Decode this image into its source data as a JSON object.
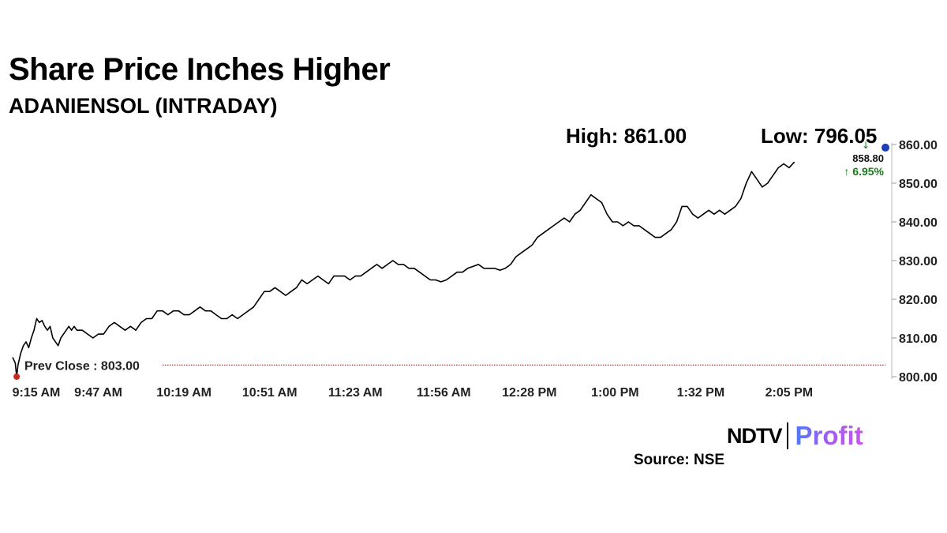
{
  "header": {
    "title": "Share Price Inches Higher",
    "subtitle": "ADANIENSOL (INTRADAY)"
  },
  "stats": {
    "high": "High: 861.00",
    "low": "Low: 796.05"
  },
  "chart_data": {
    "type": "line",
    "ylim": [
      800,
      860
    ],
    "y_ticks": [
      "800.00",
      "810.00",
      "820.00",
      "830.00",
      "840.00",
      "850.00",
      "860.00"
    ],
    "x_ticks": [
      "9:15 AM",
      "9:47 AM",
      "10:19 AM",
      "10:51 AM",
      "11:23 AM",
      "11:56 AM",
      "12:28 PM",
      "1:00 PM",
      "1:32 PM",
      "2:05 PM"
    ],
    "x_tick_minutes": [
      0,
      32,
      64,
      96,
      128,
      161,
      193,
      225,
      257,
      290
    ],
    "x_range_minutes": [
      0,
      326
    ],
    "reference_line": {
      "label": "Prev Close : 803.00",
      "value": 803.0,
      "color": "#8b1a1a"
    },
    "last_price": "858.80",
    "change": "↑ 6.95%",
    "change_color": "#1a7a1a",
    "line_color": "#000000",
    "series": [
      {
        "values": [
          [
            0,
            805
          ],
          [
            1,
            803.5
          ],
          [
            1.5,
            800
          ],
          [
            2,
            803
          ],
          [
            3,
            806
          ],
          [
            4,
            808
          ],
          [
            5,
            809
          ],
          [
            6,
            807.5
          ],
          [
            7,
            810
          ],
          [
            8,
            812
          ],
          [
            9,
            815
          ],
          [
            10,
            814
          ],
          [
            11,
            814.5
          ],
          [
            12,
            813
          ],
          [
            13,
            812
          ],
          [
            14,
            813
          ],
          [
            15,
            810
          ],
          [
            16,
            809
          ],
          [
            17,
            808
          ],
          [
            18,
            810
          ],
          [
            19,
            811
          ],
          [
            20,
            812
          ],
          [
            21,
            813
          ],
          [
            22,
            812
          ],
          [
            23,
            813
          ],
          [
            24,
            812
          ],
          [
            26,
            812
          ],
          [
            28,
            811
          ],
          [
            30,
            810
          ],
          [
            32,
            811
          ],
          [
            34,
            811
          ],
          [
            36,
            813
          ],
          [
            38,
            814
          ],
          [
            40,
            813
          ],
          [
            42,
            812
          ],
          [
            44,
            813
          ],
          [
            46,
            812
          ],
          [
            48,
            814
          ],
          [
            50,
            815
          ],
          [
            52,
            815
          ],
          [
            54,
            817
          ],
          [
            56,
            817
          ],
          [
            58,
            816
          ],
          [
            60,
            817
          ],
          [
            62,
            817
          ],
          [
            64,
            816
          ],
          [
            66,
            816
          ],
          [
            68,
            817
          ],
          [
            70,
            818
          ],
          [
            72,
            817
          ],
          [
            74,
            817
          ],
          [
            76,
            816
          ],
          [
            78,
            815
          ],
          [
            80,
            815
          ],
          [
            82,
            816
          ],
          [
            84,
            815
          ],
          [
            86,
            816
          ],
          [
            88,
            817
          ],
          [
            90,
            818
          ],
          [
            92,
            820
          ],
          [
            94,
            822
          ],
          [
            96,
            822
          ],
          [
            98,
            823
          ],
          [
            100,
            822
          ],
          [
            102,
            821
          ],
          [
            104,
            822
          ],
          [
            106,
            823
          ],
          [
            108,
            825
          ],
          [
            110,
            824
          ],
          [
            112,
            825
          ],
          [
            114,
            826
          ],
          [
            116,
            825
          ],
          [
            118,
            824
          ],
          [
            120,
            826
          ],
          [
            122,
            826
          ],
          [
            124,
            826
          ],
          [
            126,
            825
          ],
          [
            128,
            826
          ],
          [
            130,
            826
          ],
          [
            132,
            827
          ],
          [
            134,
            828
          ],
          [
            136,
            829
          ],
          [
            138,
            828
          ],
          [
            140,
            829
          ],
          [
            142,
            830
          ],
          [
            144,
            829
          ],
          [
            146,
            829
          ],
          [
            148,
            828
          ],
          [
            150,
            828
          ],
          [
            152,
            827
          ],
          [
            154,
            826
          ],
          [
            156,
            825
          ],
          [
            158,
            825
          ],
          [
            160,
            824.5
          ],
          [
            162,
            825
          ],
          [
            164,
            826
          ],
          [
            166,
            827
          ],
          [
            168,
            827
          ],
          [
            170,
            828
          ],
          [
            172,
            828.5
          ],
          [
            174,
            829
          ],
          [
            176,
            828
          ],
          [
            178,
            828
          ],
          [
            180,
            828
          ],
          [
            182,
            827.5
          ],
          [
            184,
            828
          ],
          [
            186,
            829
          ],
          [
            188,
            831
          ],
          [
            190,
            832
          ],
          [
            192,
            833
          ],
          [
            194,
            834
          ],
          [
            196,
            836
          ],
          [
            198,
            837
          ],
          [
            200,
            838
          ],
          [
            202,
            839
          ],
          [
            204,
            840
          ],
          [
            206,
            841
          ],
          [
            208,
            840
          ],
          [
            210,
            842
          ],
          [
            212,
            843
          ],
          [
            214,
            845
          ],
          [
            216,
            847
          ],
          [
            218,
            846
          ],
          [
            220,
            845
          ],
          [
            222,
            842
          ],
          [
            224,
            840
          ],
          [
            226,
            840
          ],
          [
            228,
            839
          ],
          [
            230,
            840
          ],
          [
            232,
            839
          ],
          [
            234,
            839
          ],
          [
            236,
            838
          ],
          [
            238,
            837
          ],
          [
            240,
            836
          ],
          [
            242,
            836
          ],
          [
            244,
            837
          ],
          [
            246,
            838
          ],
          [
            248,
            840
          ],
          [
            250,
            844
          ],
          [
            252,
            844
          ],
          [
            254,
            842
          ],
          [
            256,
            841
          ],
          [
            258,
            842
          ],
          [
            260,
            843
          ],
          [
            262,
            842
          ],
          [
            264,
            843
          ],
          [
            266,
            842
          ],
          [
            268,
            843
          ],
          [
            270,
            844
          ],
          [
            272,
            846
          ],
          [
            274,
            850
          ],
          [
            276,
            853
          ],
          [
            278,
            851
          ],
          [
            280,
            849
          ],
          [
            282,
            850
          ],
          [
            284,
            852
          ],
          [
            286,
            854
          ],
          [
            288,
            855
          ],
          [
            290,
            854
          ],
          [
            292,
            855.5
          ]
        ]
      }
    ]
  },
  "footer": {
    "logo_ndtv": "NDTV",
    "logo_profit": "Profit",
    "source": "Source: NSE"
  }
}
